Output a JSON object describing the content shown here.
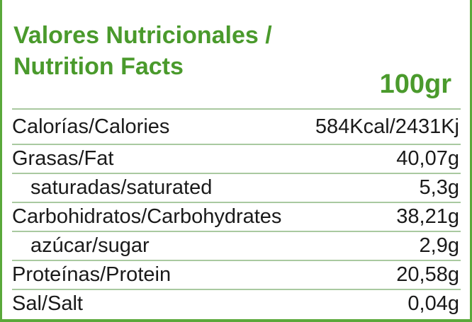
{
  "title": {
    "line1": "Valores Nutricionales /",
    "line2": "Nutrition Facts"
  },
  "serving": "100gr",
  "rows": [
    {
      "label": "Calorías/Calories",
      "value": "584Kcal/2431Kj"
    },
    {
      "label": "Grasas/Fat",
      "value": "40,07g"
    },
    {
      "label": "saturadas/saturated",
      "value": "5,3g"
    },
    {
      "label": "Carbohidratos/Carbohydrates",
      "value": "38,21g"
    },
    {
      "label": "azúcar/sugar",
      "value": "2,9g"
    },
    {
      "label": "Proteínas/Protein",
      "value": "20,58g"
    },
    {
      "label": "Sal/Salt",
      "value": "0,04g"
    }
  ],
  "colors": {
    "accent": "#4a9a2c",
    "border": "#5aa83a",
    "divider": "#a9c9a0"
  }
}
